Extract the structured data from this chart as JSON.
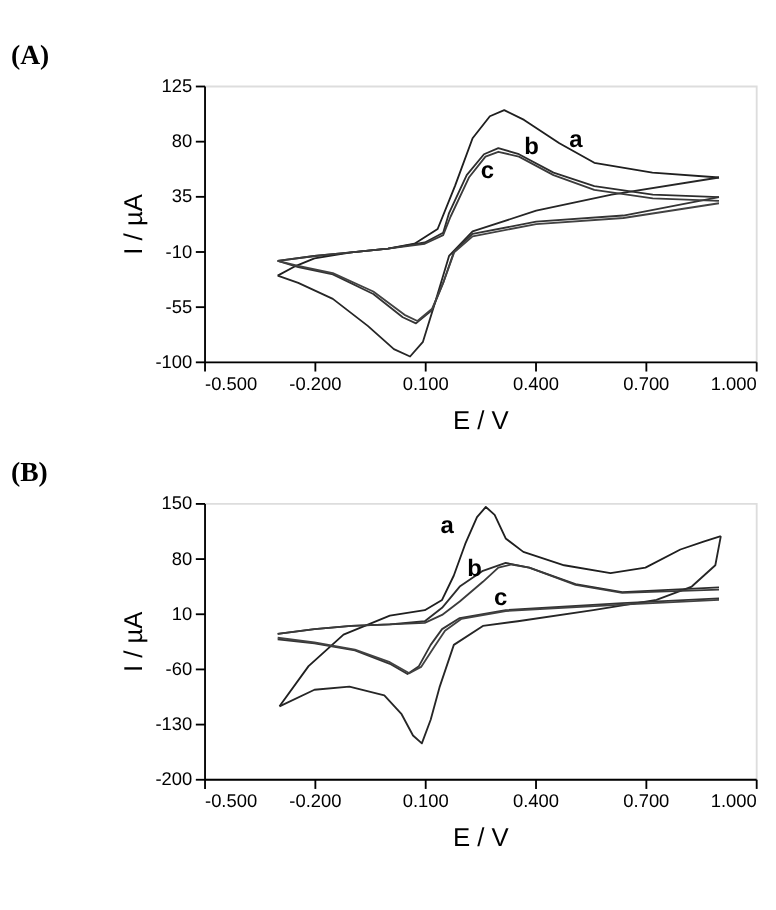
{
  "chart_data": [
    {
      "type": "line",
      "title": "(A)",
      "xlabel": "E / V",
      "ylabel": "I / µA",
      "xlim": [
        -0.5,
        1.0
      ],
      "ylim": [
        -100,
        125
      ],
      "xticks": [
        {
          "value": -0.5,
          "label": "-0.500"
        },
        {
          "value": -0.2,
          "label": "-0.200"
        },
        {
          "value": 0.1,
          "label": "0.100"
        },
        {
          "value": 0.4,
          "label": "0.400"
        },
        {
          "value": 0.7,
          "label": "0.700"
        },
        {
          "value": 1.0,
          "label": "1.000"
        }
      ],
      "yticks": [
        -100,
        -55,
        -10,
        35,
        80,
        125
      ],
      "grid": false,
      "legend": false,
      "marker": "none",
      "line_style": "solid",
      "series": [
        {
          "name": "a",
          "color": "#1f1f1f",
          "x": [
            -0.3,
            -0.25,
            -0.2,
            -0.1,
            0.0,
            0.072,
            0.135,
            0.182,
            0.23,
            0.277,
            0.316,
            0.37,
            0.466,
            0.561,
            0.719,
            0.9
          ],
          "values": [
            -30,
            -22,
            -16,
            -11,
            -8,
            -4,
            8,
            43,
            82,
            100,
            105,
            97,
            78,
            62,
            54,
            50
          ]
        },
        {
          "color": "#262626",
          "x": [
            0.9,
            0.608,
            0.403,
            0.23,
            0.166,
            0.127,
            0.095,
            0.06,
            0.016,
            -0.055,
            -0.15,
            -0.244,
            -0.3
          ],
          "values": [
            50,
            36,
            23,
            6,
            -14,
            -53,
            -84,
            -96,
            -90,
            -71,
            -49,
            -36,
            -30
          ]
        },
        {
          "name": "b",
          "color": "#2d2d2d",
          "x": [
            -0.3,
            -0.2,
            -0.1,
            0.0,
            0.1,
            0.15,
            0.166,
            0.214,
            0.261,
            0.3,
            0.356,
            0.45,
            0.561,
            0.72,
            0.9
          ],
          "values": [
            -18,
            -14,
            -11,
            -8,
            -3,
            5,
            21,
            52,
            69,
            74,
            69,
            54,
            43,
            36,
            34
          ]
        },
        {
          "color": "#343434",
          "x": [
            0.9,
            0.64,
            0.403,
            0.23,
            0.18,
            0.15,
            0.12,
            0.076,
            0.04,
            -0.04,
            -0.15,
            -0.244,
            -0.3
          ],
          "values": [
            34,
            19,
            14,
            4,
            -10,
            -36,
            -58,
            -69,
            -64,
            -45,
            -29,
            -23,
            -18
          ]
        },
        {
          "name": "c",
          "color": "#3b3b3b",
          "x": [
            -0.3,
            -0.2,
            -0.1,
            0.0,
            0.1,
            0.15,
            0.17,
            0.22,
            0.265,
            0.3,
            0.356,
            0.45,
            0.561,
            0.72,
            0.9
          ],
          "values": [
            -18,
            -14,
            -11,
            -8,
            -4,
            3,
            18,
            50,
            67,
            71,
            67,
            52,
            40,
            33,
            31
          ]
        },
        {
          "color": "#424242",
          "x": [
            0.9,
            0.64,
            0.403,
            0.23,
            0.18,
            0.15,
            0.12,
            0.08,
            0.045,
            -0.04,
            -0.15,
            -0.244,
            -0.3
          ],
          "values": [
            29,
            17,
            12,
            2,
            -11,
            -36,
            -57,
            -67,
            -62,
            -43,
            -28,
            -22,
            -18
          ]
        }
      ]
    },
    {
      "type": "line",
      "title": "(B)",
      "xlabel": "E / V",
      "ylabel": "I / µA",
      "xlim": [
        -0.5,
        1.0
      ],
      "ylim": [
        -200,
        150
      ],
      "xticks": [
        {
          "value": -0.5,
          "label": "-0.500"
        },
        {
          "value": -0.2,
          "label": "-0.200"
        },
        {
          "value": 0.1,
          "label": "0.100"
        },
        {
          "value": 0.4,
          "label": "0.400"
        },
        {
          "value": 0.7,
          "label": "0.700"
        },
        {
          "value": 1.0,
          "label": "1.000"
        }
      ],
      "yticks": [
        -200,
        -130,
        -60,
        10,
        80,
        150
      ],
      "grid": false,
      "legend": false,
      "marker": "none",
      "line_style": "solid",
      "series": [
        {
          "name": "a",
          "color": "#1f1f1f",
          "x": [
            -0.295,
            -0.216,
            -0.121,
            0.005,
            0.1,
            0.147,
            0.179,
            0.21,
            0.242,
            0.266,
            0.29,
            0.32,
            0.368,
            0.479,
            0.605,
            0.7,
            0.795,
            0.858,
            0.905
          ],
          "values": [
            -108,
            -57,
            -17,
            7,
            14,
            27,
            58,
            98,
            132,
            145,
            135,
            105,
            88,
            71,
            61,
            68,
            91,
            101,
            108
          ]
        },
        {
          "color": "#262626",
          "x": [
            0.905,
            0.89,
            0.826,
            0.73,
            0.558,
            0.353,
            0.258,
            0.179,
            0.14,
            0.116,
            0.092,
            0.068,
            0.037,
            -0.01,
            -0.105,
            -0.2,
            -0.295
          ],
          "values": [
            108,
            71,
            44,
            27,
            14,
            0,
            -6,
            -30,
            -84,
            -125,
            -155,
            -145,
            -118,
            -94,
            -83,
            -87,
            -108
          ]
        },
        {
          "name": "b",
          "color": "#2d2d2d",
          "x": [
            -0.3,
            -0.2,
            -0.1,
            0.005,
            0.1,
            0.147,
            0.195,
            0.258,
            0.32,
            0.384,
            0.51,
            0.637,
            0.9
          ],
          "values": [
            -16,
            -10,
            -6,
            -4,
            0,
            17,
            44,
            64,
            74,
            68,
            47,
            37,
            43
          ]
        },
        {
          "color": "#343434",
          "x": [
            0.9,
            0.637,
            0.32,
            0.195,
            0.147,
            0.116,
            0.084,
            0.053,
            0.005,
            -0.09,
            -0.2,
            -0.3
          ],
          "values": [
            29,
            23,
            14,
            4,
            -10,
            -30,
            -57,
            -67,
            -54,
            -37,
            -28,
            -23
          ]
        },
        {
          "name": "c",
          "color": "#3b3b3b",
          "x": [
            -0.3,
            -0.2,
            -0.1,
            0.005,
            0.1,
            0.147,
            0.195,
            0.258,
            0.3,
            0.336,
            0.384,
            0.51,
            0.637,
            0.9
          ],
          "values": [
            -16,
            -10,
            -6,
            -4,
            -2,
            8,
            25,
            50,
            68,
            72,
            68,
            46,
            36,
            40
          ]
        },
        {
          "color": "#424242",
          "x": [
            0.9,
            0.637,
            0.32,
            0.2,
            0.155,
            0.125,
            0.09,
            0.058,
            0.005,
            -0.09,
            -0.2,
            -0.3
          ],
          "values": [
            27,
            21,
            13,
            3,
            -12,
            -33,
            -58,
            -66,
            -52,
            -36,
            -27,
            -21
          ]
        }
      ]
    }
  ]
}
